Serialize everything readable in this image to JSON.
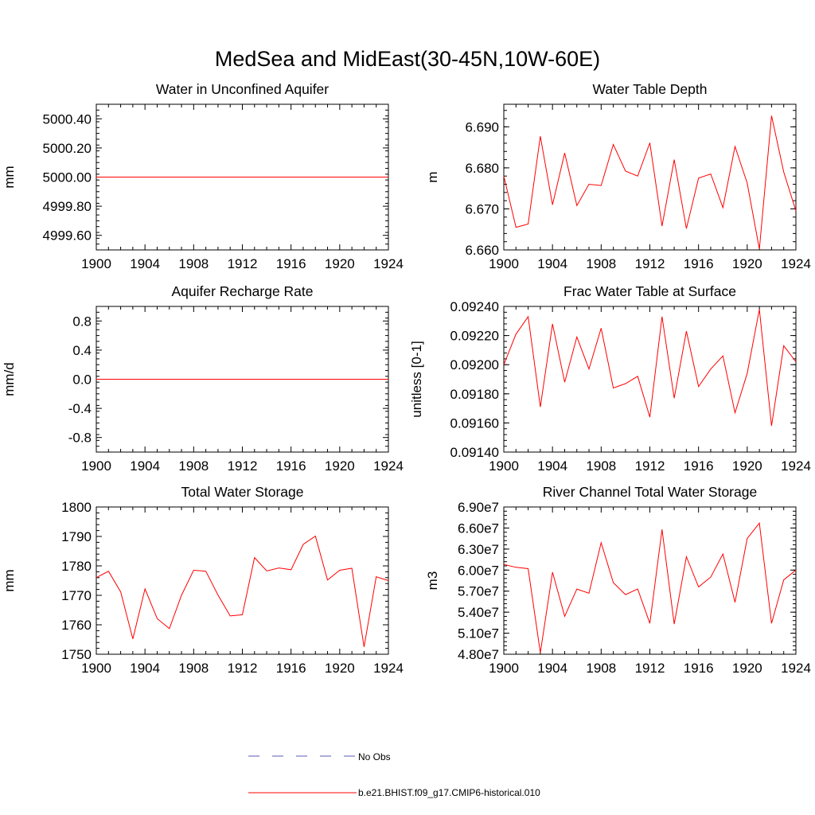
{
  "figure": {
    "title": "MedSea and MidEast(30-45N,10W-60E)",
    "line_color": "#ff0000",
    "obs_color": "#5a5ab4"
  },
  "legend": {
    "items": [
      {
        "label": "No Obs",
        "style": "dashed",
        "color": "#5a5ab4"
      },
      {
        "label": "b.e21.BHIST.f09_g17.CMIP6-historical.010",
        "style": "solid",
        "color": "#ff0000"
      }
    ]
  },
  "chart_data": [
    {
      "type": "line",
      "title": "Water in Unconfined Aquifer",
      "ylabel": "mm",
      "xlim": [
        1900,
        1924
      ],
      "ylim": [
        4999.5,
        5000.5
      ],
      "xticks": [
        1900,
        1904,
        1908,
        1912,
        1916,
        1920,
        1924
      ],
      "yticks": [
        4999.6,
        4999.8,
        5000.0,
        5000.2,
        5000.4
      ],
      "ytick_labels": [
        "4999.60",
        "4999.80",
        "5000.00",
        "5000.20",
        "5000.40"
      ],
      "x": [
        1900,
        1901,
        1902,
        1903,
        1904,
        1905,
        1906,
        1907,
        1908,
        1909,
        1910,
        1911,
        1912,
        1913,
        1914,
        1915,
        1916,
        1917,
        1918,
        1919,
        1920,
        1921,
        1922,
        1923,
        1924
      ],
      "series": [
        {
          "values": [
            5000,
            5000,
            5000,
            5000,
            5000,
            5000,
            5000,
            5000,
            5000,
            5000,
            5000,
            5000,
            5000,
            5000,
            5000,
            5000,
            5000,
            5000,
            5000,
            5000,
            5000,
            5000,
            5000,
            5000,
            5000
          ]
        }
      ]
    },
    {
      "type": "line",
      "title": "Water Table Depth",
      "ylabel": "m",
      "xlim": [
        1900,
        1924
      ],
      "ylim": [
        6.66,
        6.6955
      ],
      "xticks": [
        1900,
        1904,
        1908,
        1912,
        1916,
        1920,
        1924
      ],
      "yticks": [
        6.66,
        6.67,
        6.68,
        6.69
      ],
      "ytick_labels": [
        "6.660",
        "6.670",
        "6.680",
        "6.690"
      ],
      "x": [
        1900,
        1901,
        1902,
        1903,
        1904,
        1905,
        1906,
        1907,
        1908,
        1909,
        1910,
        1911,
        1912,
        1913,
        1914,
        1915,
        1916,
        1917,
        1918,
        1919,
        1920,
        1921,
        1922,
        1923,
        1924
      ],
      "series": [
        {
          "values": [
            6.678,
            6.6655,
            6.6663,
            6.6877,
            6.671,
            6.6836,
            6.6708,
            6.676,
            6.6757,
            6.6857,
            6.6792,
            6.678,
            6.6861,
            6.6658,
            6.682,
            6.6652,
            6.6775,
            6.6785,
            6.6703,
            6.6852,
            6.6763,
            6.6602,
            6.6927,
            6.679,
            6.6695
          ]
        }
      ]
    },
    {
      "type": "line",
      "title": "Aquifer Recharge Rate",
      "ylabel": "mm/d",
      "xlim": [
        1900,
        1924
      ],
      "ylim": [
        -1.0,
        1.0
      ],
      "xticks": [
        1900,
        1904,
        1908,
        1912,
        1916,
        1920,
        1924
      ],
      "yticks": [
        -0.8,
        -0.4,
        0.0,
        0.4,
        0.8
      ],
      "ytick_labels": [
        "-0.8",
        "-0.4",
        "0.0",
        "0.4",
        "0.8"
      ],
      "x": [
        1900,
        1901,
        1902,
        1903,
        1904,
        1905,
        1906,
        1907,
        1908,
        1909,
        1910,
        1911,
        1912,
        1913,
        1914,
        1915,
        1916,
        1917,
        1918,
        1919,
        1920,
        1921,
        1922,
        1923,
        1924
      ],
      "series": [
        {
          "values": [
            0,
            0,
            0,
            0,
            0,
            0,
            0,
            0,
            0,
            0,
            0,
            0,
            0,
            0,
            0,
            0,
            0,
            0,
            0,
            0,
            0,
            0,
            0,
            0,
            0
          ]
        }
      ]
    },
    {
      "type": "line",
      "title": "Frac Water Table at Surface",
      "ylabel": "unitless [0-1]",
      "xlim": [
        1900,
        1924
      ],
      "ylim": [
        0.0914,
        0.0924
      ],
      "xticks": [
        1900,
        1904,
        1908,
        1912,
        1916,
        1920,
        1924
      ],
      "yticks": [
        0.0914,
        0.0916,
        0.0918,
        0.092,
        0.0922,
        0.0924
      ],
      "ytick_labels": [
        "0.09140",
        "0.09160",
        "0.09180",
        "0.09200",
        "0.09220",
        "0.09240"
      ],
      "x": [
        1900,
        1901,
        1902,
        1903,
        1904,
        1905,
        1906,
        1907,
        1908,
        1909,
        1910,
        1911,
        1912,
        1913,
        1914,
        1915,
        1916,
        1917,
        1918,
        1919,
        1920,
        1921,
        1922,
        1923,
        1924
      ],
      "series": [
        {
          "values": [
            0.092,
            0.09221,
            0.09233,
            0.09171,
            0.09228,
            0.09188,
            0.09219,
            0.09197,
            0.09225,
            0.09184,
            0.09187,
            0.09192,
            0.09164,
            0.09233,
            0.09177,
            0.09223,
            0.09185,
            0.09197,
            0.09206,
            0.09167,
            0.09194,
            0.09238,
            0.09158,
            0.09213,
            0.09202
          ]
        }
      ]
    },
    {
      "type": "line",
      "title": "Total Water Storage",
      "ylabel": "mm",
      "xlim": [
        1900,
        1924
      ],
      "ylim": [
        1750,
        1800
      ],
      "xticks": [
        1900,
        1904,
        1908,
        1912,
        1916,
        1920,
        1924
      ],
      "yticks": [
        1750,
        1760,
        1770,
        1780,
        1790,
        1800
      ],
      "ytick_labels": [
        "1750",
        "1760",
        "1770",
        "1780",
        "1790",
        "1800"
      ],
      "x": [
        1900,
        1901,
        1902,
        1903,
        1904,
        1905,
        1906,
        1907,
        1908,
        1909,
        1910,
        1911,
        1912,
        1913,
        1914,
        1915,
        1916,
        1917,
        1918,
        1919,
        1920,
        1921,
        1922,
        1923,
        1924
      ],
      "series": [
        {
          "values": [
            1776,
            1778.2,
            1771.2,
            1755.2,
            1772.2,
            1762.1,
            1758.7,
            1770.0,
            1778.5,
            1778.2,
            1770.1,
            1763.0,
            1763.4,
            1782.8,
            1778.3,
            1779.3,
            1778.7,
            1787.3,
            1790.1,
            1775.2,
            1778.5,
            1779.2,
            1752.5,
            1776.3,
            1775
          ]
        }
      ]
    },
    {
      "type": "line",
      "title": "River Channel Total Water Storage",
      "ylabel": "m3",
      "xlim": [
        1900,
        1924
      ],
      "ylim": [
        48000000,
        69000000
      ],
      "xticks": [
        1900,
        1904,
        1908,
        1912,
        1916,
        1920,
        1924
      ],
      "yticks": [
        48000000,
        51000000,
        54000000,
        57000000,
        60000000,
        63000000,
        66000000,
        69000000
      ],
      "ytick_labels": [
        "4.80e7",
        "5.10e7",
        "5.40e7",
        "5.70e7",
        "6.00e7",
        "6.30e7",
        "6.60e7",
        "6.90e7"
      ],
      "x": [
        1900,
        1901,
        1902,
        1903,
        1904,
        1905,
        1906,
        1907,
        1908,
        1909,
        1910,
        1911,
        1912,
        1913,
        1914,
        1915,
        1916,
        1917,
        1918,
        1919,
        1920,
        1921,
        1922,
        1923,
        1924
      ],
      "series": [
        {
          "values": [
            60800000,
            60400000,
            60200000,
            48200000,
            59700000,
            53400000,
            57300000,
            56700000,
            63900000,
            58200000,
            56500000,
            57300000,
            52400000,
            65800000,
            52300000,
            61900000,
            57600000,
            59000000,
            62300000,
            55400000,
            64500000,
            66700000,
            52400000,
            58600000,
            60000000
          ]
        }
      ]
    }
  ]
}
